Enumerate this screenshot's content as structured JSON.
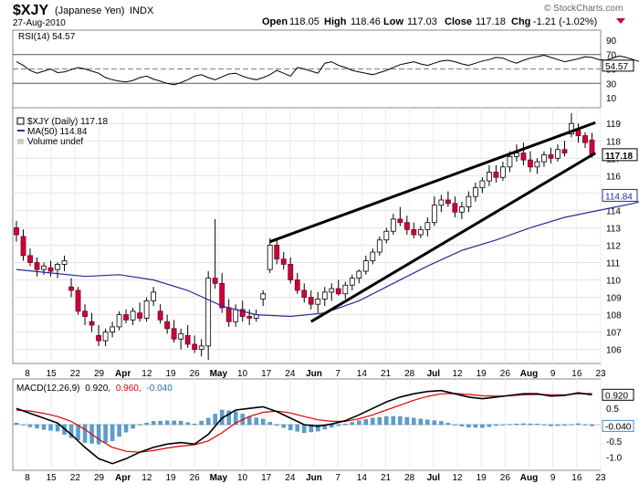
{
  "header": {
    "symbol": "$XJY",
    "name_paren": "(Japanese Yen)",
    "exchange": "INDX",
    "date": "27-Aug-2010",
    "copyright": "© StockCharts.com",
    "open_label": "Open",
    "open": "118.05",
    "high_label": "High",
    "high": "118.46",
    "low_label": "Low",
    "low": "117.03",
    "close_label": "Close",
    "close": "117.18",
    "chg_label": "Chg",
    "chg": "-1.21 (-1.02%)",
    "down_arrow_icon": "triangle-down-icon",
    "down_color": "#cc0033"
  },
  "legends": {
    "rsi": "RSI(14) 54.57",
    "price": "$XJY (Daily) 117.18",
    "ma": "MA(50) 114.84",
    "volume": "Volume undef",
    "macd_prefix": "MACD(12,26,9)",
    "macd_val": "0.920,",
    "macd_sig": "0.960,",
    "macd_hist": "-0.040"
  },
  "badges": {
    "rsi": "54.57",
    "close": "117.18",
    "ma": "114.84",
    "macd": "0.920",
    "macd_hist": "-0.040"
  },
  "chart_data": [
    {
      "type": "line",
      "panel": "RSI(14)",
      "y_ticks": [
        "90",
        "70",
        "50",
        "30",
        "10"
      ],
      "ylim": [
        0,
        100
      ],
      "overbought": 70,
      "oversold": 30,
      "x_days": [
        0,
        2,
        4,
        6,
        8,
        10,
        12,
        14,
        16,
        18,
        20,
        22,
        24,
        26,
        28,
        30,
        32,
        34,
        36,
        38,
        40,
        42,
        44,
        46,
        48,
        50,
        52,
        54,
        56,
        58,
        60,
        62,
        64,
        66,
        68,
        70,
        72,
        74,
        76,
        78,
        80,
        82,
        84,
        86,
        88,
        90,
        92,
        94,
        96,
        98,
        100,
        102,
        104,
        106,
        108,
        110,
        112,
        114,
        116,
        118,
        120,
        122,
        124,
        126,
        128,
        130,
        132,
        134,
        136,
        138,
        140,
        142,
        144,
        146,
        148,
        150,
        152,
        154,
        156,
        158,
        160,
        162,
        164,
        166,
        168,
        170,
        172,
        174,
        176,
        178,
        180,
        182,
        184,
        186,
        188
      ],
      "values": [
        60,
        55,
        48,
        44,
        47,
        50,
        45,
        46,
        49,
        52,
        50,
        47,
        44,
        38,
        35,
        33,
        32,
        34,
        38,
        40,
        36,
        33,
        30,
        28,
        31,
        35,
        40,
        42,
        38,
        35,
        39,
        43,
        44,
        40,
        37,
        35,
        38,
        42,
        48,
        44,
        40,
        52,
        50,
        47,
        44,
        58,
        60,
        55,
        52,
        48,
        46,
        44,
        42,
        45,
        48,
        52,
        56,
        58,
        60,
        57,
        55,
        58,
        61,
        62,
        60,
        57,
        55,
        58,
        61,
        63,
        66,
        65,
        61,
        58,
        62,
        65,
        67,
        69,
        66,
        63,
        60,
        62,
        64,
        67,
        66,
        63,
        62,
        65,
        68,
        66,
        63,
        60,
        63,
        62,
        55
      ],
      "last": 54.57
    },
    {
      "type": "candlestick",
      "title": "$XJY (Daily) 117.18",
      "y_ticks": [
        "119",
        "118",
        "117",
        "116",
        "115",
        "114",
        "113",
        "112",
        "111",
        "110",
        "109",
        "108",
        "107",
        "106"
      ],
      "ylim": [
        105.3,
        119.8
      ],
      "x_ticks": [
        "8",
        "15",
        "22",
        "29",
        "Apr",
        "12",
        "19",
        "26",
        "May",
        "10",
        "17",
        "24",
        "Jun",
        "7",
        "14",
        "21",
        "28",
        "Jul",
        "12",
        "19",
        "26",
        "Aug",
        "9",
        "16",
        "23"
      ],
      "series": [
        {
          "name": "MA(50)",
          "x_days": [
            0,
            10,
            20,
            30,
            40,
            50,
            60,
            70,
            80,
            90,
            100,
            110,
            120,
            130,
            140,
            150,
            160,
            170,
            180,
            188
          ],
          "values": [
            110.6,
            110.4,
            110.2,
            110.3,
            110.0,
            109.4,
            108.5,
            108.0,
            107.9,
            108.1,
            108.8,
            109.8,
            110.8,
            111.7,
            112.3,
            113.0,
            113.6,
            114.0,
            114.4,
            114.84
          ],
          "last": 114.84
        }
      ],
      "ohlc": [
        [
          0,
          113.0,
          113.4,
          112.2,
          112.6
        ],
        [
          2,
          112.5,
          112.9,
          111.1,
          111.4
        ],
        [
          4,
          111.4,
          111.8,
          110.8,
          111.0
        ],
        [
          6,
          111.0,
          111.3,
          110.2,
          110.6
        ],
        [
          8,
          110.6,
          111.0,
          110.3,
          110.8
        ],
        [
          10,
          110.7,
          111.1,
          110.2,
          110.5
        ],
        [
          12,
          110.6,
          111.0,
          110.1,
          110.9
        ],
        [
          14,
          110.9,
          111.4,
          110.5,
          111.1
        ],
        [
          16,
          109.6,
          110.1,
          109.0,
          109.4
        ],
        [
          18,
          109.4,
          109.6,
          108.0,
          108.2
        ],
        [
          20,
          108.2,
          108.6,
          107.4,
          107.9
        ],
        [
          22,
          107.6,
          108.1,
          107.0,
          107.4
        ],
        [
          24,
          106.8,
          107.4,
          106.2,
          106.5
        ],
        [
          26,
          106.5,
          107.2,
          106.2,
          107.0
        ],
        [
          28,
          107.0,
          107.6,
          106.7,
          107.3
        ],
        [
          30,
          107.3,
          108.2,
          107.1,
          108.0
        ],
        [
          32,
          108.0,
          108.3,
          107.5,
          107.7
        ],
        [
          34,
          107.7,
          108.4,
          107.4,
          108.2
        ],
        [
          36,
          108.1,
          108.7,
          107.6,
          107.8
        ],
        [
          38,
          107.8,
          109.0,
          107.6,
          108.8
        ],
        [
          40,
          108.8,
          109.6,
          108.5,
          109.3
        ],
        [
          42,
          108.2,
          108.6,
          107.5,
          107.7
        ],
        [
          44,
          107.6,
          108.0,
          106.9,
          107.2
        ],
        [
          46,
          107.2,
          107.7,
          106.4,
          106.6
        ],
        [
          48,
          106.6,
          107.2,
          106.0,
          106.9
        ],
        [
          50,
          106.8,
          107.4,
          106.1,
          106.3
        ],
        [
          52,
          106.3,
          106.8,
          105.8,
          106.0
        ],
        [
          54,
          106.0,
          106.6,
          105.6,
          106.2
        ],
        [
          56,
          106.2,
          110.5,
          105.4,
          110.1
        ],
        [
          58,
          110.1,
          113.5,
          109.5,
          109.8
        ],
        [
          60,
          109.8,
          110.4,
          108.1,
          108.4
        ],
        [
          62,
          108.4,
          108.9,
          107.3,
          107.6
        ],
        [
          64,
          107.6,
          108.6,
          107.3,
          108.3
        ],
        [
          66,
          108.3,
          108.8,
          107.6,
          107.9
        ],
        [
          68,
          107.9,
          108.3,
          107.4,
          107.8
        ],
        [
          70,
          107.8,
          108.3,
          107.6,
          108.0
        ],
        [
          72,
          108.9,
          109.4,
          108.5,
          109.2
        ],
        [
          74,
          110.6,
          112.4,
          110.4,
          112.0
        ],
        [
          76,
          112.0,
          112.3,
          110.9,
          111.2
        ],
        [
          78,
          111.2,
          111.6,
          110.6,
          110.9
        ],
        [
          80,
          110.9,
          111.3,
          109.8,
          110.0
        ],
        [
          82,
          110.0,
          110.4,
          109.2,
          109.4
        ],
        [
          84,
          109.4,
          109.8,
          108.7,
          109.0
        ],
        [
          86,
          109.0,
          109.4,
          108.3,
          108.6
        ],
        [
          88,
          108.6,
          109.3,
          108.1,
          108.9
        ],
        [
          90,
          108.9,
          109.6,
          108.5,
          109.3
        ],
        [
          92,
          109.3,
          109.8,
          108.8,
          109.5
        ],
        [
          94,
          109.5,
          110.0,
          109.1,
          109.2
        ],
        [
          96,
          109.2,
          109.9,
          108.9,
          109.7
        ],
        [
          98,
          109.7,
          110.3,
          109.4,
          110.1
        ],
        [
          100,
          110.1,
          110.6,
          109.8,
          110.5
        ],
        [
          102,
          110.5,
          111.4,
          110.3,
          111.1
        ],
        [
          104,
          111.1,
          111.8,
          110.9,
          111.6
        ],
        [
          106,
          111.6,
          112.5,
          111.4,
          112.3
        ],
        [
          108,
          112.3,
          113.0,
          112.1,
          112.8
        ],
        [
          110,
          112.8,
          113.8,
          112.6,
          113.5
        ],
        [
          112,
          113.5,
          114.2,
          113.1,
          113.3
        ],
        [
          114,
          113.3,
          113.7,
          112.6,
          112.9
        ],
        [
          116,
          112.9,
          113.3,
          112.4,
          112.6
        ],
        [
          118,
          112.6,
          113.1,
          112.4,
          112.9
        ],
        [
          120,
          112.9,
          113.6,
          112.5,
          113.3
        ],
        [
          122,
          113.3,
          114.8,
          113.1,
          114.3
        ],
        [
          124,
          114.3,
          114.9,
          113.9,
          114.6
        ],
        [
          126,
          114.6,
          115.1,
          114.2,
          114.4
        ],
        [
          128,
          114.4,
          114.8,
          113.6,
          113.9
        ],
        [
          130,
          113.9,
          114.5,
          113.5,
          114.2
        ],
        [
          132,
          114.2,
          115.1,
          113.9,
          114.8
        ],
        [
          134,
          114.8,
          115.6,
          114.5,
          115.3
        ],
        [
          136,
          115.3,
          115.9,
          115.0,
          115.7
        ],
        [
          138,
          115.7,
          116.6,
          115.4,
          116.2
        ],
        [
          140,
          116.2,
          116.6,
          115.6,
          115.9
        ],
        [
          142,
          115.9,
          116.8,
          115.7,
          116.5
        ],
        [
          144,
          116.5,
          117.4,
          116.2,
          117.1
        ],
        [
          146,
          117.1,
          117.8,
          116.8,
          117.3
        ],
        [
          148,
          117.3,
          117.9,
          116.6,
          116.9
        ],
        [
          150,
          116.9,
          117.4,
          116.2,
          116.5
        ],
        [
          152,
          116.5,
          117.0,
          116.1,
          116.8
        ],
        [
          154,
          116.8,
          117.4,
          116.5,
          117.2
        ],
        [
          156,
          117.2,
          117.6,
          116.7,
          117.0
        ],
        [
          158,
          117.0,
          117.8,
          116.8,
          117.5
        ],
        [
          160,
          117.5,
          118.0,
          117.1,
          117.3
        ],
        [
          162,
          118.4,
          119.6,
          118.2,
          119.0
        ],
        [
          164,
          118.6,
          119.0,
          117.9,
          118.3
        ],
        [
          166,
          118.3,
          118.5,
          117.6,
          117.9
        ],
        [
          168,
          118.05,
          118.46,
          117.03,
          117.18
        ]
      ],
      "trendlines": [
        {
          "name": "upper",
          "from": {
            "x_day": 74,
            "y": 112.2
          },
          "to": {
            "x_day": 169,
            "y": 119.05
          }
        },
        {
          "name": "lower",
          "from": {
            "x_day": 86,
            "y": 107.6
          },
          "to": {
            "x_day": 169,
            "y": 117.3
          }
        }
      ],
      "last": 117.18
    },
    {
      "type": "line",
      "panel": "MACD(12,26,9)",
      "y_ticks": [
        "1.0",
        "0.5",
        "0.0",
        "-0.5",
        "-1.0"
      ],
      "ylim": [
        -1.35,
        1.35
      ],
      "x_days": [
        0,
        4,
        8,
        12,
        16,
        20,
        24,
        28,
        32,
        36,
        40,
        44,
        48,
        52,
        56,
        60,
        64,
        68,
        72,
        76,
        80,
        84,
        88,
        92,
        96,
        100,
        104,
        108,
        112,
        116,
        120,
        124,
        128,
        132,
        136,
        140,
        144,
        148,
        152,
        156,
        160,
        164,
        168
      ],
      "series": [
        {
          "name": "MACD",
          "color": "#000000",
          "values": [
            0.5,
            0.35,
            0.2,
            0.05,
            -0.3,
            -0.7,
            -1.05,
            -1.2,
            -1.05,
            -0.85,
            -0.7,
            -0.6,
            -0.55,
            -0.6,
            -0.3,
            0.2,
            0.45,
            0.5,
            0.55,
            0.4,
            0.2,
            0.0,
            -0.05,
            0.02,
            0.12,
            0.3,
            0.5,
            0.7,
            0.85,
            0.95,
            1.02,
            1.05,
            0.95,
            0.85,
            0.8,
            0.85,
            0.9,
            0.95,
            0.95,
            0.88,
            0.9,
            0.98,
            0.92
          ]
        },
        {
          "name": "Signal",
          "color": "#e00000",
          "values": [
            0.45,
            0.42,
            0.35,
            0.25,
            0.1,
            -0.15,
            -0.45,
            -0.7,
            -0.82,
            -0.85,
            -0.8,
            -0.72,
            -0.66,
            -0.62,
            -0.5,
            -0.25,
            0.05,
            0.25,
            0.38,
            0.42,
            0.36,
            0.25,
            0.15,
            0.1,
            0.1,
            0.18,
            0.3,
            0.45,
            0.6,
            0.75,
            0.87,
            0.95,
            0.96,
            0.93,
            0.89,
            0.88,
            0.89,
            0.92,
            0.93,
            0.92,
            0.92,
            0.95,
            0.96
          ]
        },
        {
          "name": "Histogram",
          "color": "#4a90c8",
          "values": [
            0.05,
            -0.07,
            -0.15,
            -0.2,
            -0.4,
            -0.55,
            -0.6,
            -0.5,
            -0.23,
            0.0,
            0.1,
            0.12,
            0.11,
            0.02,
            0.2,
            0.45,
            0.4,
            0.25,
            0.17,
            -0.02,
            -0.16,
            -0.25,
            -0.2,
            -0.08,
            0.02,
            0.12,
            0.2,
            0.25,
            0.25,
            0.2,
            0.15,
            0.1,
            -0.01,
            -0.08,
            -0.09,
            -0.03,
            0.01,
            0.03,
            0.02,
            -0.04,
            -0.02,
            0.03,
            -0.04
          ]
        }
      ],
      "last_macd": 0.92,
      "last_hist": -0.04
    }
  ]
}
